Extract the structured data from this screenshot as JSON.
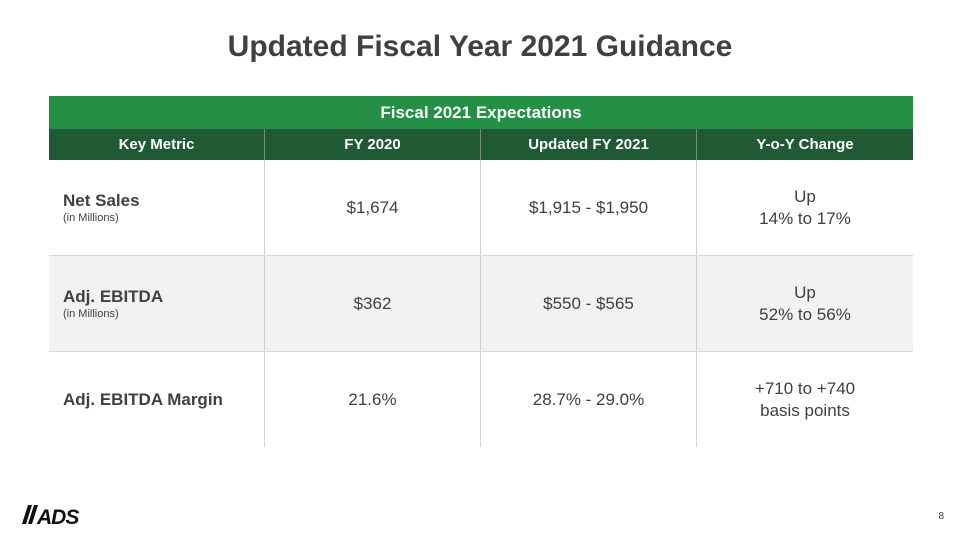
{
  "slide": {
    "title": "Updated Fiscal Year 2021 Guidance",
    "page_number": "8",
    "logo_text": "ADS"
  },
  "table": {
    "band_title": "Fiscal 2021 Expectations",
    "headers": [
      "Key Metric",
      "FY 2020",
      "Updated FY 2021",
      "Y-o-Y Change"
    ],
    "rows": [
      {
        "metric": "Net Sales",
        "sub": "(in Millions)",
        "fy2020": "$1,674",
        "fy2021": "$1,915 - $1,950",
        "change_line1": "Up",
        "change_line2": "14% to 17%"
      },
      {
        "metric": "Adj. EBITDA",
        "sub": "(in Millions)",
        "fy2020": "$362",
        "fy2021": "$550 - $565",
        "change_line1": "Up",
        "change_line2": "52% to 56%"
      },
      {
        "metric": "Adj. EBITDA Margin",
        "sub": "",
        "fy2020": "21.6%",
        "fy2021": "28.7% - 29.0%",
        "change_line1": "+710 to +740",
        "change_line2": "basis points"
      }
    ]
  },
  "colors": {
    "band_green": "#239046",
    "header_dark_green": "#1f5a34",
    "text_gray": "#404040",
    "alt_row": "#f2f2f2"
  }
}
